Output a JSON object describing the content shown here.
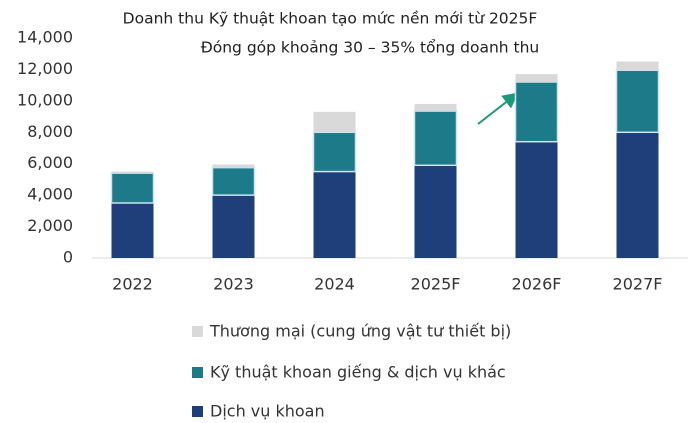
{
  "chart_data": {
    "type": "stacked_bar",
    "title": "Doanh thu Kỹ thuật khoan tạo mức nền mới từ 2025F",
    "subtitle": "Đóng góp khoảng 30 – 35% tổng doanh thu",
    "categories": [
      "2022",
      "2023",
      "2024",
      "2025F",
      "2026F",
      "2027F"
    ],
    "series": [
      {
        "name": "Dịch vụ khoan",
        "color": "#1f3f7a",
        "values": [
          3500,
          4000,
          5500,
          5900,
          7400,
          8000
        ]
      },
      {
        "name": "Kỹ thuật khoan giếng & dịch vụ khác",
        "color": "#1d7a88",
        "values": [
          1900,
          1750,
          2500,
          3450,
          3800,
          3950
        ]
      },
      {
        "name": "Thương mại (cung ứng vật tư thiết bị)",
        "color": "#d9d9d9",
        "values": [
          100,
          200,
          1300,
          450,
          500,
          550
        ]
      }
    ],
    "ylim": [
      0,
      14000
    ],
    "yticks": [
      0,
      {
        "value": 2000,
        "label": "2,000"
      },
      {
        "value": 4000,
        "label": "4,000"
      },
      {
        "value": 6000,
        "label": "6,000"
      },
      {
        "value": 8000,
        "label": "8,000"
      },
      {
        "value": 10000,
        "label": "10,000"
      },
      {
        "value": 12000,
        "label": "12,000"
      },
      {
        "value": 14000,
        "label": "14,000"
      }
    ]
  }
}
